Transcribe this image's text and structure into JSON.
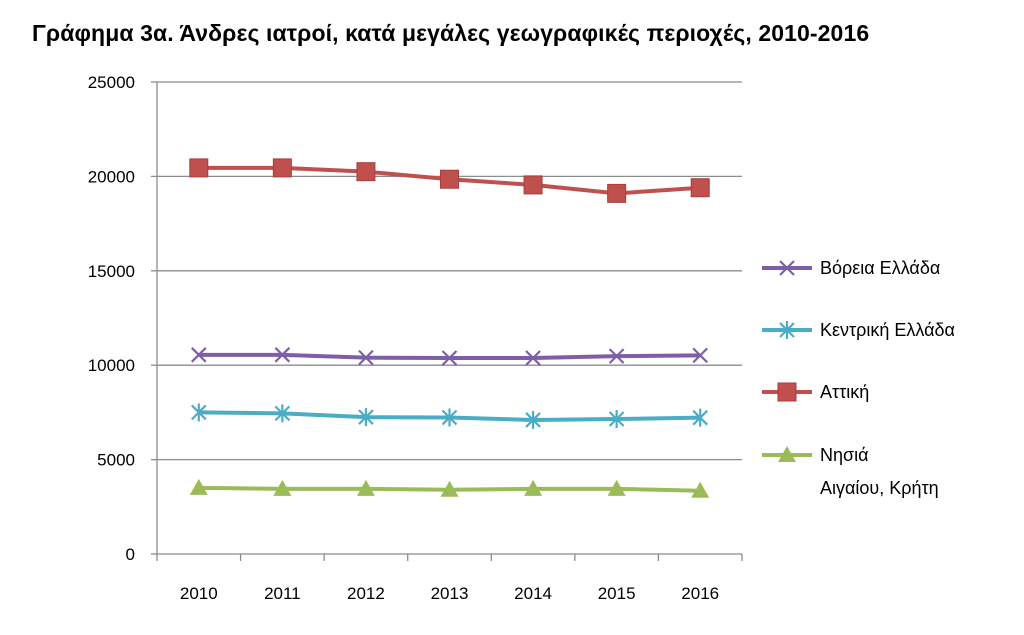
{
  "chart_data": {
    "type": "line",
    "title": "Γράφημα 3α. Άνδρες ιατροί, κατά μεγάλες γεωγραφικές περιοχές, 2010-2016",
    "xlabel": "",
    "ylabel": "",
    "categories": [
      "2010",
      "2011",
      "2012",
      "2013",
      "2014",
      "2015",
      "2016"
    ],
    "ylim": [
      0,
      25000
    ],
    "yticks": [
      0,
      5000,
      10000,
      15000,
      20000,
      25000
    ],
    "grid": true,
    "legend_position": "right",
    "series": [
      {
        "name": "Βόρεια Ελλάδα",
        "color": "#7f5ea8",
        "marker": "x",
        "values": [
          10550,
          10550,
          10400,
          10380,
          10380,
          10480,
          10520
        ]
      },
      {
        "name": "Κεντρική Ελλάδα",
        "color": "#4bacc6",
        "marker": "star",
        "values": [
          7500,
          7450,
          7250,
          7230,
          7100,
          7150,
          7220
        ]
      },
      {
        "name": "Αττική",
        "color": "#c0504d",
        "marker": "square",
        "values": [
          20450,
          20450,
          20250,
          19850,
          19550,
          19100,
          19400
        ]
      },
      {
        "name": "Νησιά Αιγαίου, Κρήτη",
        "color": "#9bbb59",
        "marker": "triangle",
        "legend_lines": [
          "Νησιά",
          "Αιγαίου, Κρήτη"
        ],
        "values": [
          3500,
          3450,
          3450,
          3400,
          3450,
          3450,
          3350
        ]
      }
    ]
  }
}
